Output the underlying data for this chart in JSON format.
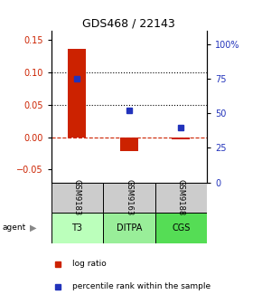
{
  "title": "GDS468 / 22143",
  "samples": [
    "GSM9183",
    "GSM9163",
    "GSM9188"
  ],
  "agents": [
    "T3",
    "DITPA",
    "CGS"
  ],
  "log_ratios": [
    0.137,
    -0.022,
    -0.004
  ],
  "percentile_ranks_pct": [
    75,
    52,
    40
  ],
  "bar_color": "#cc2200",
  "dot_color": "#2233bb",
  "bar_width": 0.35,
  "ylim_left": [
    -0.07,
    0.165
  ],
  "ylim_right": [
    0,
    110
  ],
  "yticks_left": [
    -0.05,
    0,
    0.05,
    0.1,
    0.15
  ],
  "yticks_right": [
    0,
    25,
    50,
    75,
    100
  ],
  "y_right_labels": [
    "0",
    "25",
    "50",
    "75",
    "100%"
  ],
  "hline_dotted": [
    0.05,
    0.1
  ],
  "hline_dashed_color": "#cc2200",
  "agent_colors": [
    "#bbffbb",
    "#99ee99",
    "#55dd55"
  ],
  "sample_bg": "#cccccc",
  "legend_items": [
    "log ratio",
    "percentile rank within the sample"
  ],
  "left_label_color": "#cc2200",
  "right_label_color": "#2233bb"
}
